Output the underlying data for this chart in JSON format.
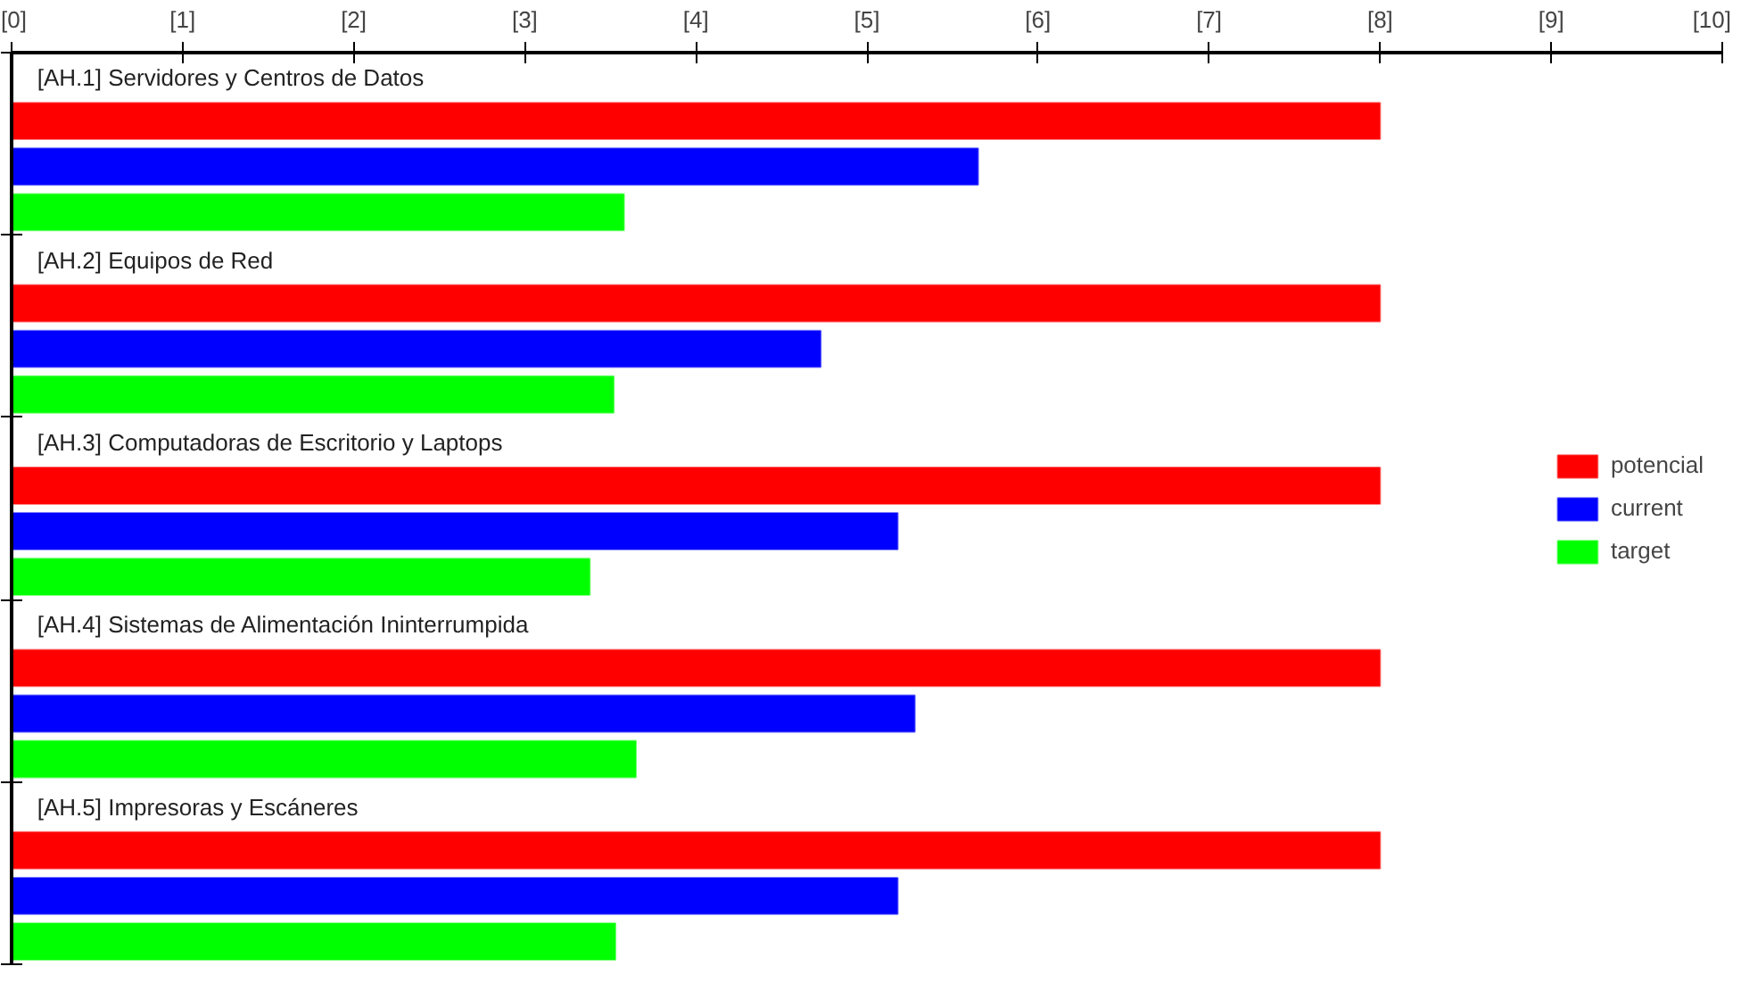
{
  "chart_data": {
    "type": "bar",
    "orientation": "horizontal",
    "categories": [
      "[AH.1] Servidores y Centros de Datos",
      "[AH.2] Equipos de Red",
      "[AH.3] Computadoras de Escritorio y Laptops",
      "[AH.4] Sistemas de Alimentación Ininterrumpida",
      "[AH.5] Impresoras y Escáneres"
    ],
    "series": [
      {
        "name": "potencial",
        "color": "#ff0000",
        "values": [
          8,
          8,
          8,
          8,
          8
        ]
      },
      {
        "name": "current",
        "color": "#0000ff",
        "values": [
          5.65,
          4.73,
          5.18,
          5.28,
          5.18
        ]
      },
      {
        "name": "target",
        "color": "#00ff00",
        "values": [
          3.58,
          3.52,
          3.38,
          3.65,
          3.53
        ]
      }
    ],
    "xlim": [
      0,
      10
    ],
    "xticks": [
      {
        "value": 0,
        "label": "[0]"
      },
      {
        "value": 1,
        "label": "[1]"
      },
      {
        "value": 2,
        "label": "[2]"
      },
      {
        "value": 3,
        "label": "[3]"
      },
      {
        "value": 4,
        "label": "[4]"
      },
      {
        "value": 5,
        "label": "[5]"
      },
      {
        "value": 6,
        "label": "[6]"
      },
      {
        "value": 7,
        "label": "[7]"
      },
      {
        "value": 8,
        "label": "[8]"
      },
      {
        "value": 9,
        "label": "[9]"
      },
      {
        "value": 10,
        "label": "[10]"
      }
    ],
    "tick_labels": "x",
    "legend": "right"
  }
}
